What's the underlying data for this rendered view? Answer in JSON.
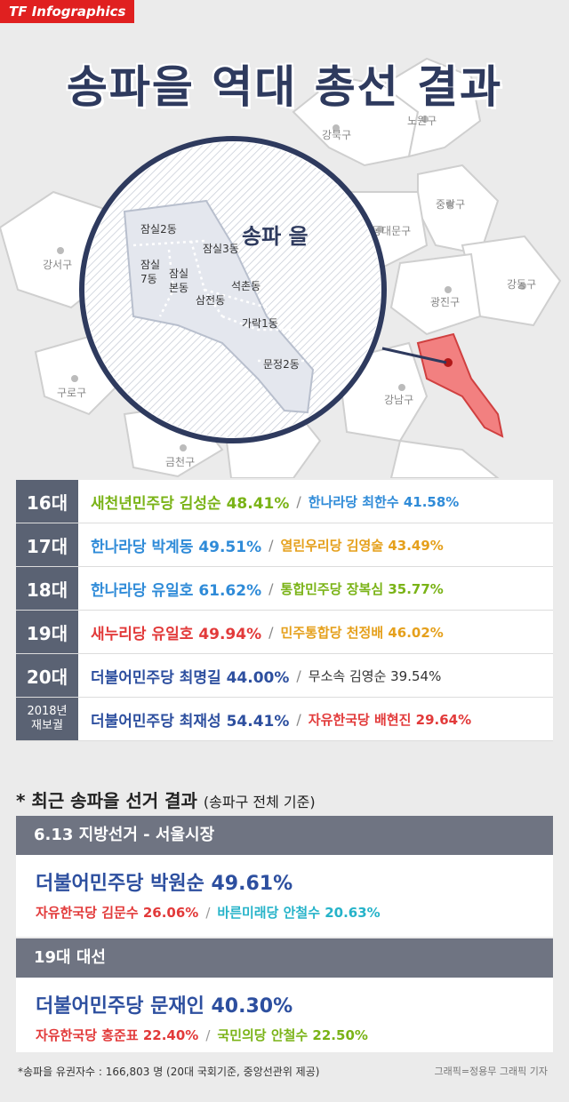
{
  "brand": "TF Infographics",
  "title": "송파을 역대 총선 결과",
  "map": {
    "districts": [
      "강북구",
      "노원구",
      "중랑구",
      "동대문구",
      "강서구",
      "강동구",
      "광진구",
      "구로구",
      "강남구",
      "금천구"
    ],
    "inset_title": "송파 을",
    "dongs": [
      "잠실2동",
      "잠실3동",
      "잠실\n7동",
      "잠실\n본동",
      "삼전동",
      "석촌동",
      "가락1동",
      "문정2동"
    ]
  },
  "elections": [
    {
      "gen": "16대",
      "c1": "새천년민주당 김성순 48.41%",
      "c1_color": "green",
      "c2": "한나라당 최한수 41.58%",
      "c2_color": "blue"
    },
    {
      "gen": "17대",
      "c1": "한나라당 박계동 49.51%",
      "c1_color": "blue",
      "c2": "열린우리당 김영술 43.49%",
      "c2_color": "orange"
    },
    {
      "gen": "18대",
      "c1": "한나라당 유일호 61.62%",
      "c1_color": "blue",
      "c2": "통합민주당 장복심 35.77%",
      "c2_color": "green"
    },
    {
      "gen": "19대",
      "c1": "새누리당 유일호 49.94%",
      "c1_color": "red",
      "c2": "민주통합당 천정배 46.02%",
      "c2_color": "orange"
    },
    {
      "gen": "20대",
      "c1": "더불어민주당 최명길 44.00%",
      "c1_color": "navy",
      "c2": "무소속 김영순 39.54%",
      "c2_color": "dark"
    },
    {
      "gen": "2018년\n재보궐",
      "c1": "더불어민주당 최재성 54.41%",
      "c1_color": "navy",
      "c2": "자유한국당 배현진 29.64%",
      "c2_color": "red"
    }
  ],
  "recent": {
    "title": "* 최근 송파을 선거 결과",
    "subtitle": "(송파구 전체 기준)",
    "local": {
      "head": "6.13 지방선거 - 서울시장",
      "winner": "더불어민주당 박원순 49.61%",
      "other1": "자유한국당 김문수 26.06%",
      "other2": "바른미래당 안철수 20.63%"
    },
    "presidential": {
      "head": "19대 대선",
      "winner": "더불어민주당 문재인 40.30%",
      "other1": "자유한국당 홍준표 22.40%",
      "other2": "국민의당 안철수 22.50%"
    }
  },
  "footnote": "*송파을 유권자수 : 166,803 명 (20대 국회기준, 중앙선관위 제공)",
  "credit": "그래픽=정용무 그래픽 기자",
  "colors": {
    "navy": "#2d4f9f",
    "header_bg": "#5a6273",
    "highlight": "#f28080"
  }
}
